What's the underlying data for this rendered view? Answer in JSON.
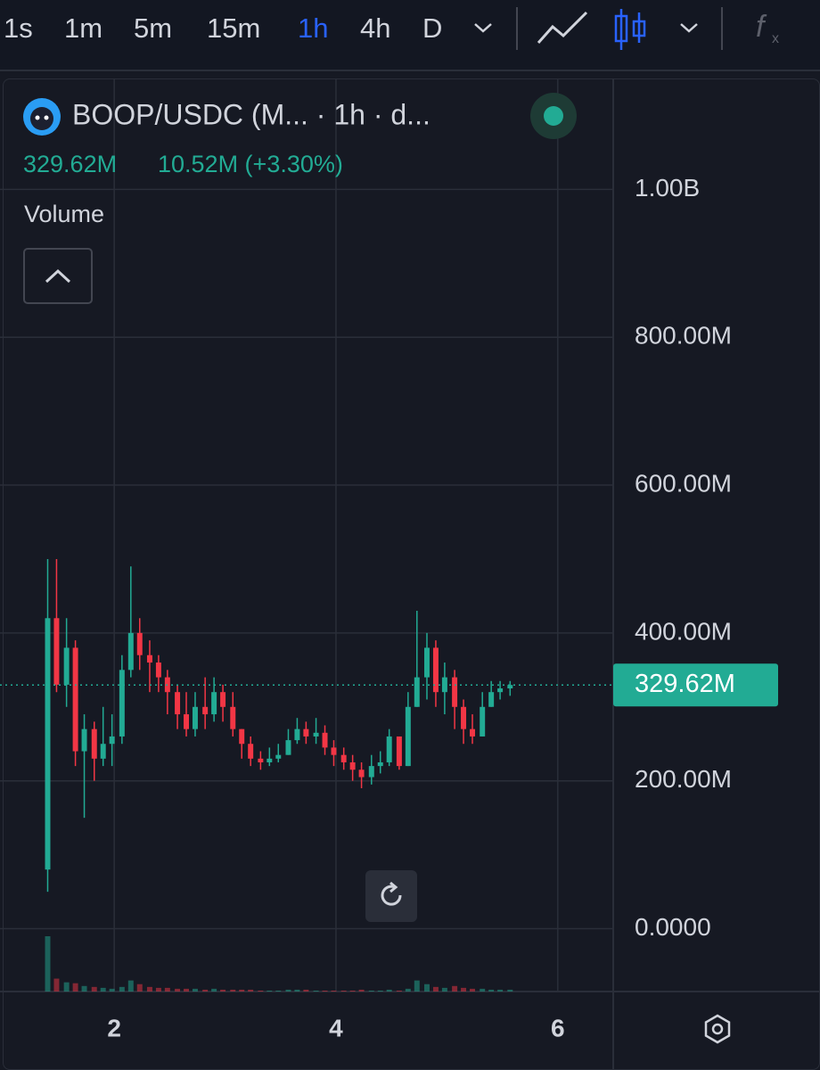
{
  "toolbar": {
    "intervals": [
      {
        "label": "1s"
      },
      {
        "label": "1m"
      },
      {
        "label": "5m"
      },
      {
        "label": "15m"
      },
      {
        "label": "1h",
        "active": true
      },
      {
        "label": "4h"
      },
      {
        "label": "D"
      }
    ]
  },
  "header": {
    "symbol": "BOOP/USDC (M... · 1h · d...",
    "price": "329.62M",
    "change": "10.52M (+3.30%)",
    "indicator": "Volume"
  },
  "chart_data": {
    "type": "candlestick",
    "x": [
      1.4,
      1.48,
      1.57,
      1.65,
      1.73,
      1.82,
      1.9,
      1.98,
      2.07,
      2.15,
      2.23,
      2.32,
      2.4,
      2.48,
      2.57,
      2.65,
      2.73,
      2.82,
      2.9,
      2.98,
      3.07,
      3.15,
      3.23,
      3.32,
      3.4,
      3.48,
      3.57,
      3.65,
      3.73,
      3.82,
      3.9,
      3.98,
      4.07,
      4.15,
      4.23,
      4.32,
      4.4,
      4.48,
      4.57,
      4.65,
      4.73,
      4.82,
      4.9,
      4.98,
      5.07,
      5.15,
      5.23,
      5.32,
      5.4,
      5.48,
      5.57
    ],
    "open": [
      80,
      420,
      330,
      380,
      240,
      270,
      230,
      250,
      260,
      350,
      400,
      370,
      360,
      340,
      320,
      290,
      270,
      300,
      290,
      320,
      300,
      270,
      250,
      230,
      225,
      230,
      235,
      255,
      270,
      260,
      265,
      245,
      235,
      225,
      215,
      205,
      220,
      225,
      260,
      220,
      300,
      340,
      380,
      320,
      340,
      300,
      270,
      260,
      300,
      320,
      325
    ],
    "close": [
      420,
      330,
      380,
      240,
      270,
      230,
      250,
      260,
      350,
      400,
      370,
      360,
      340,
      320,
      290,
      270,
      300,
      290,
      320,
      300,
      270,
      250,
      230,
      225,
      230,
      235,
      255,
      270,
      260,
      265,
      245,
      235,
      225,
      215,
      205,
      220,
      225,
      260,
      220,
      300,
      340,
      380,
      320,
      340,
      300,
      270,
      260,
      300,
      320,
      325,
      329.62
    ],
    "high": [
      500,
      500,
      420,
      390,
      290,
      280,
      300,
      290,
      370,
      490,
      420,
      390,
      370,
      350,
      330,
      320,
      320,
      340,
      340,
      330,
      320,
      270,
      260,
      240,
      245,
      250,
      270,
      285,
      280,
      285,
      275,
      255,
      245,
      235,
      225,
      235,
      240,
      270,
      250,
      320,
      430,
      400,
      390,
      360,
      350,
      310,
      290,
      320,
      335,
      335,
      335
    ],
    "low": [
      50,
      320,
      300,
      220,
      150,
      200,
      220,
      220,
      250,
      340,
      350,
      320,
      320,
      290,
      270,
      260,
      260,
      270,
      280,
      280,
      260,
      230,
      220,
      215,
      220,
      225,
      235,
      250,
      250,
      250,
      235,
      220,
      215,
      200,
      190,
      195,
      210,
      220,
      215,
      220,
      300,
      310,
      300,
      290,
      270,
      250,
      250,
      260,
      300,
      310,
      315
    ],
    "volume": [
      60,
      14,
      10,
      9,
      6,
      5,
      4,
      3,
      5,
      12,
      8,
      5,
      4,
      4,
      3,
      3,
      3,
      2,
      3,
      2,
      2,
      2,
      2,
      1,
      1,
      1,
      2,
      2,
      2,
      1,
      1,
      1,
      1,
      1,
      2,
      1,
      1,
      2,
      1,
      3,
      12,
      8,
      5,
      4,
      6,
      4,
      3,
      3,
      2,
      2,
      2
    ],
    "up_color": "#22ab94",
    "down_color": "#f23645",
    "xlim": [
      0.97,
      6.5
    ],
    "xticks": [
      2,
      4,
      6
    ],
    "ylim": [
      -85,
      1150
    ],
    "yticks": [
      {
        "value": 0,
        "label": "0.0000"
      },
      {
        "value": 200,
        "label": "200.00M"
      },
      {
        "value": 400,
        "label": "400.00M"
      },
      {
        "value": 600,
        "label": "600.00M"
      },
      {
        "value": 800,
        "label": "800.00M"
      },
      {
        "value": 1000,
        "label": "1.00B"
      }
    ],
    "last_price": {
      "value": 329.62,
      "label": "329.62M"
    },
    "grid": true
  }
}
